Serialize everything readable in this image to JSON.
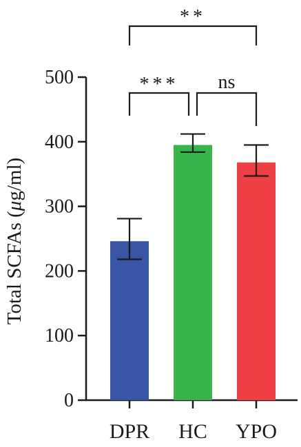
{
  "chart_data": {
    "type": "bar",
    "categories": [
      "DPR",
      "HC",
      "YPO"
    ],
    "values": [
      246,
      395,
      368
    ],
    "errors": [
      {
        "low": 218,
        "high": 281
      },
      {
        "low": 384,
        "high": 412
      },
      {
        "low": 347,
        "high": 395
      }
    ],
    "colors": [
      "#3755a4",
      "#39b44a",
      "#ee4042"
    ],
    "ylabel_prefix": "Total SCFAs (",
    "ylabel_mu": "μ",
    "ylabel_suffix": "g/ml)",
    "ylim": [
      0,
      500
    ],
    "yticks": [
      "0",
      "100",
      "200",
      "300",
      "400",
      "500"
    ],
    "grid": false,
    "significance": [
      {
        "label": "***",
        "from": "DPR",
        "to": "HC"
      },
      {
        "label": "ns",
        "from": "HC",
        "to": "YPO"
      },
      {
        "label": "**",
        "from": "DPR",
        "to": "YPO"
      }
    ]
  }
}
